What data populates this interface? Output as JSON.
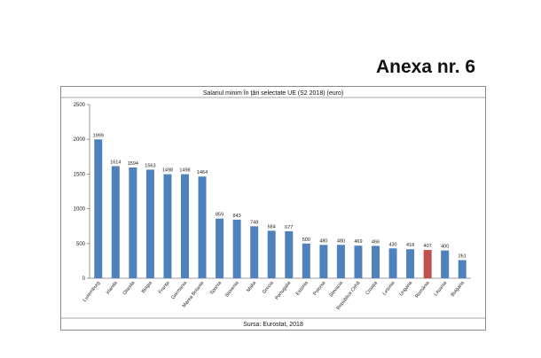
{
  "page": {
    "annex_title": "Anexa nr. 6"
  },
  "chart_data": {
    "type": "bar",
    "title": "Salariul minim în ţări selectate UE (S2 2018) (euro)",
    "source": "Sursa: Eurostat, 2018",
    "categories": [
      "Luxemburg",
      "Irlanda",
      "Olanda",
      "Belgia",
      "Franța",
      "Germania",
      "Marea Britanie",
      "Spania",
      "Slovenia",
      "Malta",
      "Grecia",
      "Portugalia",
      "Estonia",
      "Polonia",
      "Slovacia",
      "Republica Cehă",
      "Croația",
      "Letonia",
      "Ungaria",
      "România",
      "Lituania",
      "Bulgaria"
    ],
    "values": [
      1999,
      1614,
      1594,
      1563,
      1498,
      1498,
      1464,
      859,
      843,
      748,
      684,
      677,
      500,
      480,
      480,
      469,
      466,
      430,
      418,
      407,
      400,
      261
    ],
    "value_labels": [
      "1999",
      "1614",
      "1594",
      "1563",
      "1498",
      "1498",
      "1464",
      "859",
      "843",
      "748",
      "684",
      "677",
      "500",
      "480",
      "480",
      "469",
      "466",
      "430",
      "418",
      "407",
      "400",
      "261"
    ],
    "highlight_index": 19,
    "y_ticks": [
      "0",
      "500",
      "1000",
      "1500",
      "2000",
      "2500"
    ],
    "ylim": [
      0,
      2500
    ],
    "grid": false,
    "legend": "none",
    "colors": {
      "bar": "#4f81bd",
      "highlight": "#c0504d",
      "axis": "#7f7f7f"
    }
  }
}
